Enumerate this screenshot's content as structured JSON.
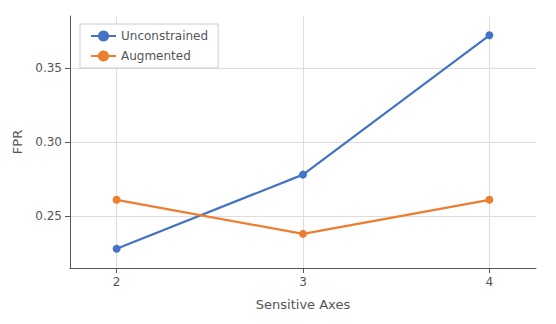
{
  "chart_data": {
    "type": "line",
    "x": [
      2,
      3,
      4
    ],
    "series": [
      {
        "name": "Unconstrained",
        "color": "#4472C4",
        "values": [
          0.228,
          0.278,
          0.372
        ]
      },
      {
        "name": "Augmented",
        "color": "#ED7D31",
        "values": [
          0.261,
          0.238,
          0.261
        ]
      }
    ],
    "xlabel": "Sensitive Axes",
    "ylabel": "FPR",
    "xlim": [
      1.75,
      4.25
    ],
    "xticks": [
      2,
      3,
      4
    ],
    "ylim": [
      0.215,
      0.385
    ],
    "yticks": [
      0.25,
      {
        "value": 0.3,
        "label": "0.30"
      },
      0.35
    ],
    "grid": true,
    "legend": "upper left",
    "marker": "circle",
    "line_style": "solid"
  }
}
